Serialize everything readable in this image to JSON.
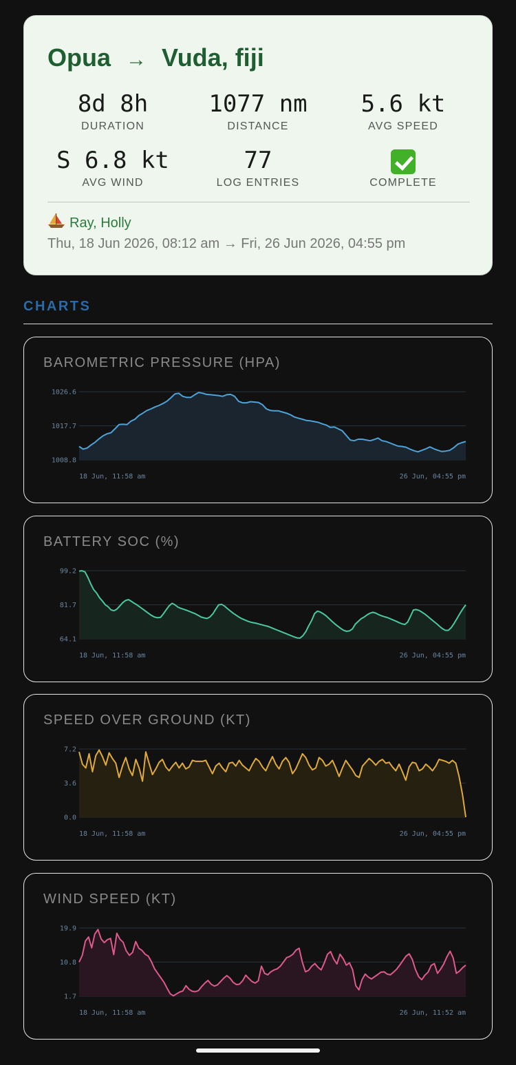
{
  "summary": {
    "from": "Opua",
    "arrow": "→",
    "to": "Vuda, fiji",
    "stats": [
      {
        "value": "8d 8h",
        "label": "DURATION"
      },
      {
        "value": "1077 nm",
        "label": "DISTANCE"
      },
      {
        "value": "5.6 kt",
        "label": "AVG SPEED"
      },
      {
        "value": "S 6.8 kt",
        "label": "AVG WIND"
      },
      {
        "value": "77",
        "label": "LOG ENTRIES"
      },
      {
        "value": "",
        "label": "COMPLETE",
        "icon": "check-mark-icon"
      }
    ],
    "crew": "Ray, Holly",
    "dates": "Thu, 18 Jun 2026, 08:12 am → Fri, 26 Jun 2026, 04:55 pm"
  },
  "charts_section": {
    "title": "CHARTS"
  },
  "chart_data": [
    {
      "type": "area",
      "title": "BAROMETRIC PRESSURE (HPA)",
      "color": "#4ea3d9",
      "fill": "#1a2530",
      "yticks": [
        "1026.6",
        "1017.7",
        "1008.8"
      ],
      "ylim": [
        1008.8,
        1026.6
      ],
      "xlabels": [
        "18 Jun, 11:58 am",
        "26 Jun, 04:55 pm"
      ],
      "values": [
        1012.3,
        1011.6,
        1011.9,
        1012.7,
        1013.4,
        1014.3,
        1015.1,
        1015.6,
        1015.9,
        1016.9,
        1018.0,
        1018.1,
        1018.0,
        1018.9,
        1019.4,
        1020.4,
        1021.0,
        1021.7,
        1022.1,
        1022.6,
        1023.0,
        1023.5,
        1024.1,
        1025.0,
        1026.0,
        1026.2,
        1025.4,
        1025.1,
        1025.1,
        1025.8,
        1026.4,
        1026.2,
        1025.9,
        1025.8,
        1025.7,
        1025.6,
        1025.4,
        1025.8,
        1025.9,
        1025.4,
        1024.1,
        1023.7,
        1023.7,
        1024.0,
        1023.9,
        1023.8,
        1023.2,
        1022.1,
        1021.7,
        1021.6,
        1021.6,
        1021.3,
        1021.0,
        1020.6,
        1020.0,
        1019.7,
        1019.4,
        1019.1,
        1019.0,
        1018.8,
        1018.6,
        1018.2,
        1017.9,
        1017.3,
        1017.4,
        1016.9,
        1016.4,
        1015.2,
        1014.0,
        1013.8,
        1014.2,
        1014.2,
        1014.0,
        1013.8,
        1014.1,
        1014.5,
        1013.8,
        1013.6,
        1013.2,
        1012.8,
        1012.4,
        1012.3,
        1012.1,
        1011.6,
        1011.2,
        1010.9,
        1011.3,
        1011.7,
        1012.2,
        1011.7,
        1011.3,
        1011.0,
        1011.1,
        1011.3,
        1012.0,
        1012.9,
        1013.3,
        1013.6
      ]
    },
    {
      "type": "area",
      "title": "BATTERY SOC (%)",
      "color": "#4cc9a0",
      "fill": "#16261f",
      "yticks": [
        "99.2",
        "81.7",
        "64.1"
      ],
      "ylim": [
        64.1,
        99.2
      ],
      "xlabels": [
        "18 Jun, 11:58 am",
        "26 Jun, 04:55 pm"
      ],
      "values": [
        99.0,
        99.2,
        98.6,
        95.8,
        92.4,
        89.5,
        87.7,
        85.3,
        83.6,
        81.7,
        80.6,
        79.0,
        78.6,
        79.4,
        81.1,
        82.8,
        83.9,
        84.3,
        83.4,
        82.4,
        81.5,
        80.4,
        79.3,
        78.2,
        77.1,
        76.1,
        75.3,
        75.0,
        75.2,
        77.0,
        79.2,
        81.2,
        82.4,
        81.6,
        80.4,
        79.8,
        79.3,
        78.8,
        78.2,
        77.6,
        77.0,
        76.2,
        75.3,
        74.9,
        74.6,
        75.4,
        77.0,
        79.4,
        81.6,
        81.9,
        81.0,
        79.7,
        78.5,
        77.3,
        76.3,
        75.3,
        74.5,
        73.8,
        73.2,
        72.7,
        72.4,
        72.1,
        71.7,
        71.3,
        70.9,
        70.5,
        69.9,
        69.3,
        68.7,
        68.1,
        67.5,
        66.9,
        66.3,
        65.7,
        65.1,
        64.6,
        64.5,
        65.8,
        67.9,
        70.9,
        73.6,
        77.2,
        78.4,
        77.9,
        77.0,
        75.9,
        74.5,
        73.1,
        71.8,
        70.6,
        69.5,
        68.5,
        68.0,
        68.2,
        69.2,
        71.7,
        73.1,
        74.5,
        75.3,
        76.4,
        77.3,
        77.8,
        77.4,
        76.6,
        76.0,
        75.5,
        75.1,
        74.5,
        73.8,
        73.2,
        72.5,
        71.9,
        71.5,
        72.7,
        75.8,
        79.0,
        79.2,
        78.7,
        77.8,
        76.8,
        75.6,
        74.3,
        73.1,
        71.9,
        70.5,
        69.3,
        68.5,
        68.5,
        69.9,
        72.1,
        74.6,
        77.2,
        79.6,
        81.7
      ]
    },
    {
      "type": "line",
      "title": "SPEED OVER GROUND (KT)",
      "color": "#e0ab3c",
      "fill": "#262011",
      "yticks": [
        "7.2",
        "3.6",
        "0.0"
      ],
      "ylim": [
        0.0,
        7.2
      ],
      "xlabels": [
        "18 Jun, 11:58 am",
        "26 Jun, 04:55 pm"
      ],
      "values": [
        6.9,
        5.6,
        5.2,
        6.7,
        4.8,
        6.5,
        7.1,
        6.4,
        5.5,
        6.8,
        6.2,
        5.7,
        4.2,
        5.4,
        6.3,
        5.1,
        4.4,
        6.1,
        5.2,
        3.8,
        6.9,
        5.7,
        4.5,
        5.1,
        5.8,
        6.1,
        5.3,
        4.9,
        5.4,
        5.8,
        5.2,
        5.7,
        5.1,
        5.3,
        6.0,
        5.9,
        5.9,
        5.9,
        6.0,
        5.3,
        4.6,
        5.4,
        5.7,
        5.2,
        4.8,
        5.7,
        5.8,
        5.4,
        6.0,
        5.5,
        5.2,
        4.9,
        5.6,
        6.2,
        5.9,
        5.3,
        4.9,
        5.7,
        6.4,
        5.6,
        5.1,
        5.9,
        6.3,
        5.8,
        4.6,
        5.1,
        5.9,
        6.7,
        6.3,
        5.5,
        5.0,
        5.2,
        6.3,
        6.0,
        5.4,
        5.6,
        6.0,
        5.2,
        4.3,
        5.2,
        6.0,
        5.5,
        5.0,
        4.4,
        4.2,
        5.4,
        5.8,
        6.2,
        5.9,
        5.5,
        5.9,
        6.1,
        5.7,
        5.8,
        5.3,
        4.9,
        5.6,
        4.8,
        3.9,
        5.3,
        5.8,
        5.7,
        4.9,
        5.1,
        5.6,
        5.3,
        4.9,
        5.4,
        6.1,
        6.0,
        5.9,
        5.7,
        6.0,
        5.7,
        4.3,
        2.4,
        0.0
      ]
    },
    {
      "type": "area",
      "title": "WIND SPEED (KT)",
      "color": "#de5a8c",
      "fill": "#2a1620",
      "yticks": [
        "19.9",
        "10.8",
        "1.7"
      ],
      "ylim": [
        1.7,
        19.9
      ],
      "xlabels": [
        "18 Jun, 11:58 am",
        "26 Jun, 11:52 am"
      ],
      "values": [
        10.8,
        12.6,
        16.4,
        17.5,
        14.6,
        18.3,
        19.5,
        17.0,
        16.0,
        16.8,
        17.1,
        12.8,
        18.5,
        16.9,
        16.1,
        13.8,
        12.6,
        13.4,
        16.3,
        14.5,
        13.9,
        12.9,
        12.4,
        10.9,
        9.0,
        7.8,
        6.6,
        5.4,
        3.8,
        2.3,
        1.8,
        2.3,
        2.8,
        3.1,
        4.5,
        3.5,
        3.0,
        2.9,
        3.2,
        4.3,
        5.2,
        5.9,
        4.9,
        4.4,
        4.7,
        5.6,
        6.5,
        7.2,
        6.5,
        5.4,
        4.8,
        4.9,
        5.8,
        7.3,
        6.4,
        5.6,
        5.2,
        5.8,
        9.7,
        7.8,
        7.4,
        8.2,
        8.7,
        9.0,
        9.7,
        10.8,
        12.0,
        12.3,
        12.9,
        14.0,
        14.5,
        10.8,
        8.2,
        8.6,
        9.7,
        10.4,
        9.4,
        8.7,
        10.6,
        12.9,
        13.6,
        11.6,
        10.3,
        12.9,
        11.7,
        10.0,
        10.6,
        8.8,
        4.5,
        3.4,
        6.1,
        7.6,
        6.8,
        6.3,
        6.9,
        7.5,
        8.1,
        8.2,
        7.6,
        7.4,
        8.1,
        8.9,
        10.0,
        11.2,
        12.4,
        13.0,
        11.5,
        8.8,
        6.9,
        6.1,
        7.3,
        8.1,
        9.9,
        10.4,
        7.8,
        8.9,
        10.3,
        12.2,
        13.7,
        11.9,
        7.8,
        8.4,
        9.3,
        10.0
      ]
    }
  ]
}
